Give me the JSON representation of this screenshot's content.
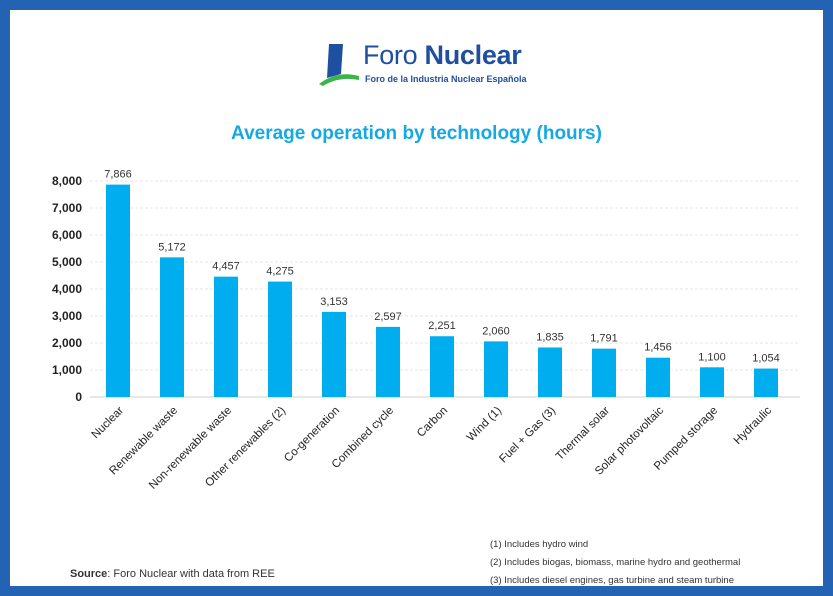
{
  "logo": {
    "name_light": "Foro",
    "name_bold": "Nuclear",
    "tagline": "Foro de la Industria Nuclear Española"
  },
  "chart_data": {
    "type": "bar",
    "title": "Average operation by technology (hours)",
    "xlabel": "",
    "ylabel": "",
    "categories": [
      "Nuclear",
      "Renewable waste",
      "Non-renewable waste",
      "Other renewables (2)",
      "Co-generation",
      "Combined cycle",
      "Carbon",
      "Wind (1)",
      "Fuel + Gas (3)",
      "Thermal solar",
      "Solar photovoltaic",
      "Pumped storage",
      "Hydraulic"
    ],
    "values": [
      7866,
      5172,
      4457,
      4275,
      3153,
      2597,
      2251,
      2060,
      1835,
      1791,
      1456,
      1100,
      1054
    ],
    "value_labels": [
      "7,866",
      "5,172",
      "4,457",
      "4,275",
      "3,153",
      "2,597",
      "2,251",
      "2,060",
      "1,835",
      "1,791",
      "1,456",
      "1,100",
      "1,054"
    ],
    "ylim": [
      0,
      8000
    ],
    "yticks": [
      0,
      1000,
      2000,
      3000,
      4000,
      5000,
      6000,
      7000,
      8000
    ],
    "ytick_labels": [
      "0",
      "1,000",
      "2,000",
      "3,000",
      "4,000",
      "5,000",
      "6,000",
      "7,000",
      "8,000"
    ],
    "grid": true,
    "bar_color": "#00aeef"
  },
  "notes": [
    "(1) Includes hydro wind",
    "(2) Includes biogas, biomass, marine hydro and geothermal",
    "(3) Includes diesel engines, gas turbine and steam turbine"
  ],
  "source": {
    "label": "Source",
    "text": ": Foro Nuclear with data from REE"
  }
}
